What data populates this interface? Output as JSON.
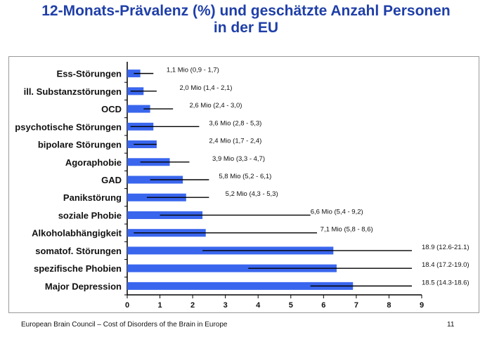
{
  "title_line1": "12-Monats-Prävalenz (%) und geschätzte Anzahl Personen",
  "title_line2": "in der EU",
  "footer": {
    "source": "European Brain Council – Cost of Disorders of the Brain in Europe",
    "page_number": "11"
  },
  "colors": {
    "bar": "#3a66ee",
    "title": "#1f3fa8",
    "whisker": "#000000"
  },
  "chart_data": {
    "type": "bar",
    "orientation": "horizontal",
    "categories": [
      "Ess-Störungen",
      "ill. Substanzstörungen",
      "OCD",
      "psychotische Störungen",
      "bipolare Störungen",
      "Agoraphobie",
      "GAD",
      "Panikstörung",
      "soziale Phobie",
      "Alkoholabhängigkeit",
      "somatof. Störungen",
      "spezifische Phobien",
      "Major Depression"
    ],
    "values": [
      0.4,
      0.5,
      0.7,
      0.8,
      0.9,
      1.3,
      1.7,
      1.8,
      2.3,
      2.4,
      6.3,
      6.4,
      6.9
    ],
    "error_low": [
      0.2,
      0.1,
      0.5,
      0.1,
      0.2,
      0.4,
      0.7,
      0.6,
      1.0,
      0.2,
      2.3,
      3.7,
      5.6
    ],
    "error_high": [
      0.8,
      0.9,
      1.4,
      2.2,
      0.9,
      1.9,
      2.5,
      2.5,
      5.6,
      5.8,
      8.7,
      8.7,
      8.7
    ],
    "labels": [
      "1,1 Mio (0,9 - 1,7)",
      "2,0 Mio (1,4 - 2,1)",
      "2,6 Mio (2,4 - 3,0)",
      "3,6 Mio (2,8 - 5,3)",
      "2,4 Mio (1,7 - 2,4)",
      "3,9 Mio (3,3 - 4,7)",
      "5,8 Mio (5,2 - 6,1)",
      "5,2 Mio (4,3 - 5,3)",
      "6,6 Mio (5,4 - 9,2)",
      "7,1 Mio (5,8 - 8,6)",
      "18.9 (12.6-21.1)",
      "18.4 (17.2-19.0)",
      "18.5 (14.3-18.6)"
    ],
    "label_x": [
      1.2,
      1.6,
      1.9,
      2.5,
      2.5,
      2.6,
      2.8,
      3.0,
      5.6,
      5.9,
      9.0,
      9.0,
      9.0
    ],
    "xlim": [
      0,
      9
    ],
    "xticks": [
      "0",
      "1",
      "2",
      "3",
      "4",
      "5",
      "6",
      "7",
      "8",
      "9"
    ],
    "xlabel": "",
    "ylabel": "",
    "grid": false,
    "legend": "none"
  }
}
